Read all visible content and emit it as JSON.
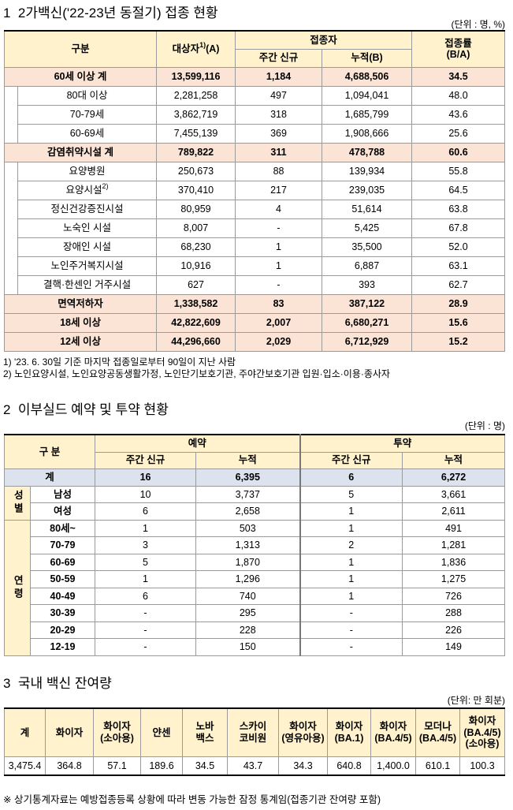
{
  "section1": {
    "title": "1  2가백신('22-23년 동절기) 접종 현황",
    "unit": "(단위 : 명, %)",
    "header": {
      "category": "구분",
      "target": {
        "text": "대상자",
        "note": "1)",
        "suffix": "(A)"
      },
      "vaccinated": "접종자",
      "weekly": "주간 신규",
      "cumulative": "누적(B)",
      "rate": "접종률\n(B/A)"
    },
    "groups": [
      {
        "total": [
          "60세 이상 계",
          "13,599,116",
          "1,184",
          "4,688,506",
          "34.5"
        ],
        "items": [
          [
            "80대 이상",
            "2,281,258",
            "497",
            "1,094,041",
            "48.0"
          ],
          [
            "70-79세",
            "3,862,719",
            "318",
            "1,685,799",
            "43.6"
          ],
          [
            "60-69세",
            "7,455,139",
            "369",
            "1,908,666",
            "25.6"
          ]
        ]
      },
      {
        "total": [
          "감염취약시설 계",
          "789,822",
          "311",
          "478,788",
          "60.6"
        ],
        "items": [
          [
            "요양병원",
            "250,673",
            "88",
            "139,934",
            "55.8"
          ],
          [
            {
              "text": "요양시설",
              "note": "2)"
            },
            "370,410",
            "217",
            "239,035",
            "64.5"
          ],
          [
            "정신건강증진시설",
            "80,959",
            "4",
            "51,614",
            "63.8"
          ],
          [
            "노숙인 시설",
            "8,007",
            "-",
            "5,425",
            "67.8"
          ],
          [
            "장애인 시설",
            "68,230",
            "1",
            "35,500",
            "52.0"
          ],
          [
            "노인주거복지시설",
            "10,916",
            "1",
            "6,887",
            "63.1"
          ],
          [
            "결핵·한센인 거주시설",
            "627",
            "-",
            "393",
            "62.7"
          ]
        ]
      },
      {
        "total": [
          "면역저하자",
          "1,338,582",
          "83",
          "387,122",
          "28.9"
        ],
        "items": []
      },
      {
        "total": [
          "18세 이상",
          "42,822,609",
          "2,007",
          "6,680,271",
          "15.6"
        ],
        "items": []
      },
      {
        "total": [
          "12세 이상",
          "44,296,660",
          "2,029",
          "6,712,929",
          "15.2"
        ],
        "items": []
      }
    ],
    "footnotes": [
      "1) '23. 6. 30일 기준 마지막 접종일로부터 90일이 지난 사람",
      "2) 노인요양시설, 노인요양공동생활가정, 노인단기보호기관, 주야간보호기관 입원·입소·이용·종사자"
    ]
  },
  "section2": {
    "title": "2  이부실드 예약 및 투약 현황",
    "unit": "(단위 : 명)",
    "header": {
      "category": "구 분",
      "reservation": "예약",
      "administration": "투약",
      "columns": [
        "주간 신규",
        "누적",
        "주간 신규",
        "누적"
      ]
    },
    "total": [
      "계",
      "16",
      "6,395",
      "6",
      "6,272"
    ],
    "groups": [
      {
        "label": "성별",
        "rows": [
          [
            "남성",
            "10",
            "3,737",
            "5",
            "3,661"
          ],
          [
            "여성",
            "6",
            "2,658",
            "1",
            "2,611"
          ]
        ]
      },
      {
        "label": "연령",
        "rows": [
          [
            "80세~",
            "1",
            "503",
            "1",
            "491"
          ],
          [
            "70-79",
            "3",
            "1,313",
            "2",
            "1,281"
          ],
          [
            "60-69",
            "5",
            "1,870",
            "1",
            "1,836"
          ],
          [
            "50-59",
            "1",
            "1,296",
            "1",
            "1,275"
          ],
          [
            "40-49",
            "6",
            "740",
            "1",
            "726"
          ],
          [
            "30-39",
            "-",
            "295",
            "-",
            "288"
          ],
          [
            "20-29",
            "-",
            "228",
            "-",
            "226"
          ],
          [
            "12-19",
            "-",
            "150",
            "-",
            "149"
          ]
        ]
      }
    ]
  },
  "section3": {
    "title": "3  국내 백신 잔여량",
    "unit": "(단위: 만 회분)",
    "headers": [
      "계",
      "화이자",
      "화이자\n(소아용)",
      "얀센",
      "노바\n백스",
      "스카이\n코비원",
      "화이자\n(영유아용)",
      "화이자\n(BA.1)",
      "화이자\n(BA.4/5)",
      "모더나\n(BA.4/5)",
      "화이자\n(BA.4/5)\n(소아용)"
    ],
    "values": [
      "3,475.4",
      "364.8",
      "57.1",
      "189.6",
      "34.5",
      "43.7",
      "34.3",
      "640.8",
      "1,400.0",
      "610.1",
      "100.3"
    ]
  },
  "note": "※ 상기통계자료는 예방접종등록 상황에 따라 변동 가능한 잠정 통계임(접종기관 잔여량 포함)"
}
